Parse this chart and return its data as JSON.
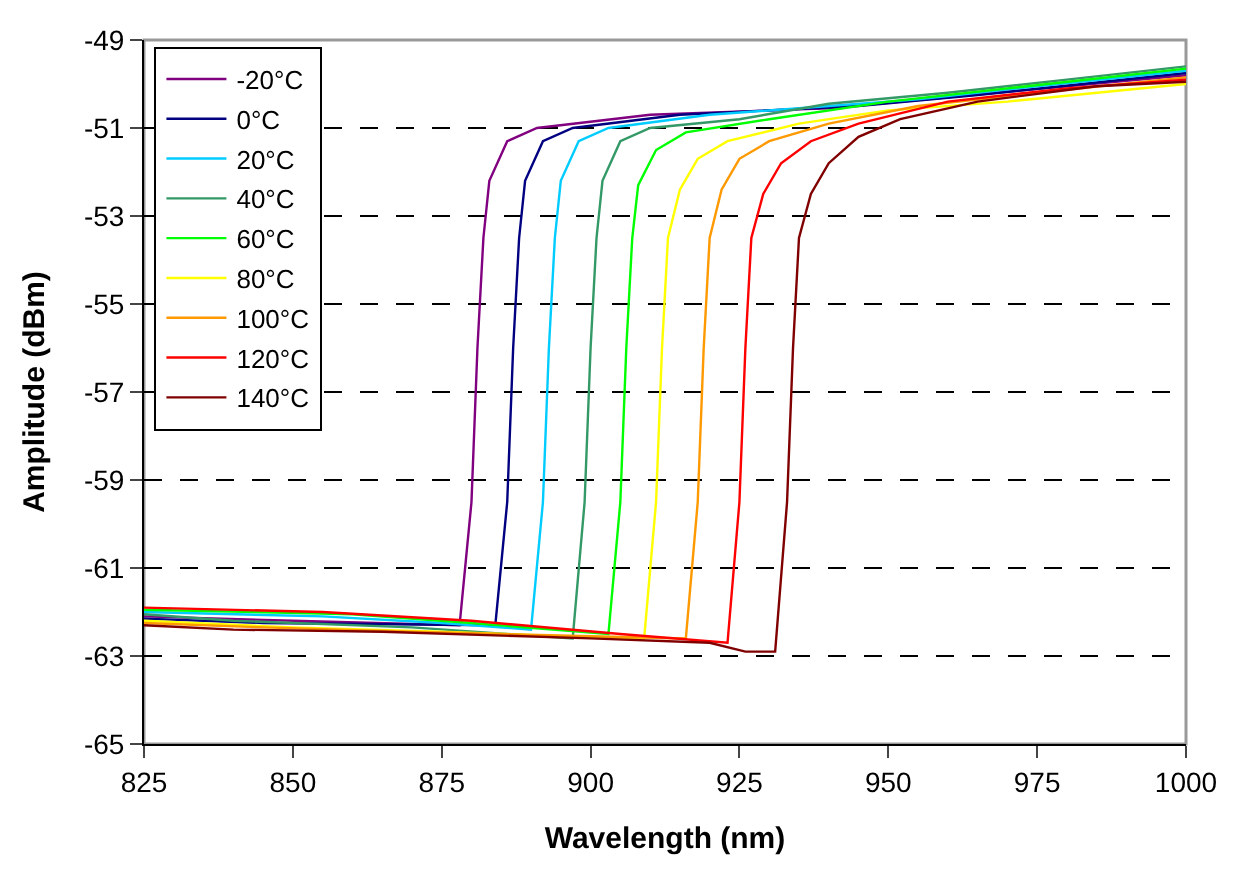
{
  "chart_data": {
    "type": "line",
    "xlabel": "Wavelength (nm)",
    "ylabel": "Amplitude (dBm)",
    "xlim": [
      825,
      1000
    ],
    "xticks": [
      825,
      850,
      875,
      900,
      925,
      950,
      975,
      1000
    ],
    "ylim": [
      -65,
      -49
    ],
    "yticks": [
      -65,
      -63,
      -61,
      -59,
      -57,
      -55,
      -53,
      -51,
      -49
    ],
    "grid": "y",
    "legend": "top left",
    "marker": "none",
    "line_style": "solid",
    "series": [
      {
        "name": "-20°C",
        "color": "#800080",
        "x": [
          825,
          850,
          878,
          880,
          881,
          882,
          883,
          886,
          891,
          910,
          940,
          960,
          980,
          1000
        ],
        "values": [
          -62.1,
          -62.2,
          -62.3,
          -59.5,
          -56,
          -53.5,
          -52.2,
          -51.3,
          -51.0,
          -50.7,
          -50.55,
          -50.3,
          -50.05,
          -49.8
        ]
      },
      {
        "name": "0°C",
        "color": "#000080",
        "x": [
          825,
          845,
          884,
          886,
          887,
          888,
          889,
          892,
          897,
          915,
          945,
          965,
          1000
        ],
        "values": [
          -62.15,
          -62.25,
          -62.3,
          -59.5,
          -56,
          -53.5,
          -52.2,
          -51.3,
          -51.0,
          -50.7,
          -50.5,
          -50.25,
          -49.75
        ]
      },
      {
        "name": "20°C",
        "color": "#00ccff",
        "x": [
          825,
          855,
          875,
          890,
          892,
          893,
          894,
          895,
          898,
          903,
          920,
          935,
          955,
          975,
          1000
        ],
        "values": [
          -62.0,
          -62.1,
          -62.25,
          -62.4,
          -59.5,
          -56,
          -53.5,
          -52.2,
          -51.3,
          -51.0,
          -50.7,
          -50.55,
          -50.35,
          -50.05,
          -49.7
        ]
      },
      {
        "name": "40°C",
        "color": "#339966",
        "x": [
          825,
          840,
          870,
          897,
          899,
          900,
          901,
          902,
          905,
          910,
          925,
          940,
          960,
          980,
          1000
        ],
        "values": [
          -62.05,
          -62.2,
          -62.35,
          -62.6,
          -59.5,
          -56,
          -53.5,
          -52.2,
          -51.3,
          -51.0,
          -50.8,
          -50.45,
          -50.2,
          -49.9,
          -49.6
        ]
      },
      {
        "name": "60°C",
        "color": "#00ff00",
        "x": [
          825,
          860,
          880,
          903,
          905,
          906,
          907,
          908,
          911,
          916,
          930,
          950,
          970,
          1000
        ],
        "values": [
          -61.95,
          -62.05,
          -62.25,
          -62.5,
          -59.5,
          -56,
          -53.5,
          -52.3,
          -51.5,
          -51.1,
          -50.8,
          -50.4,
          -50.1,
          -49.65
        ]
      },
      {
        "name": "80°C",
        "color": "#ffff00",
        "x": [
          825,
          850,
          875,
          895,
          909,
          911,
          912,
          913,
          915,
          918,
          923,
          935,
          950,
          970,
          1000
        ],
        "values": [
          -62.2,
          -62.35,
          -62.45,
          -62.55,
          -62.6,
          -59.5,
          -56,
          -53.5,
          -52.4,
          -51.7,
          -51.3,
          -50.9,
          -50.6,
          -50.4,
          -50.0
        ]
      },
      {
        "name": "100°C",
        "color": "#ff9900",
        "x": [
          825,
          845,
          870,
          900,
          916,
          918,
          919,
          920,
          922,
          925,
          930,
          940,
          955,
          975,
          1000
        ],
        "values": [
          -62.25,
          -62.35,
          -62.45,
          -62.55,
          -62.6,
          -59.5,
          -56,
          -53.5,
          -52.4,
          -51.7,
          -51.3,
          -50.9,
          -50.5,
          -50.2,
          -49.85
        ]
      },
      {
        "name": "120°C",
        "color": "#ff0000",
        "x": [
          825,
          855,
          880,
          905,
          923,
          925,
          926,
          927,
          929,
          932,
          937,
          945,
          960,
          980,
          1000
        ],
        "values": [
          -61.9,
          -62.0,
          -62.2,
          -62.5,
          -62.7,
          -59.5,
          -56,
          -53.5,
          -52.5,
          -51.8,
          -51.3,
          -50.9,
          -50.4,
          -50.1,
          -49.9
        ]
      },
      {
        "name": "140°C",
        "color": "#800000",
        "x": [
          825,
          840,
          865,
          900,
          920,
          926,
          931,
          933,
          934,
          935,
          937,
          940,
          945,
          952,
          965,
          985,
          1000
        ],
        "values": [
          -62.3,
          -62.4,
          -62.45,
          -62.6,
          -62.7,
          -62.9,
          -62.9,
          -59.5,
          -56,
          -53.5,
          -52.5,
          -51.8,
          -51.2,
          -50.8,
          -50.4,
          -50.05,
          -49.95
        ]
      }
    ]
  }
}
